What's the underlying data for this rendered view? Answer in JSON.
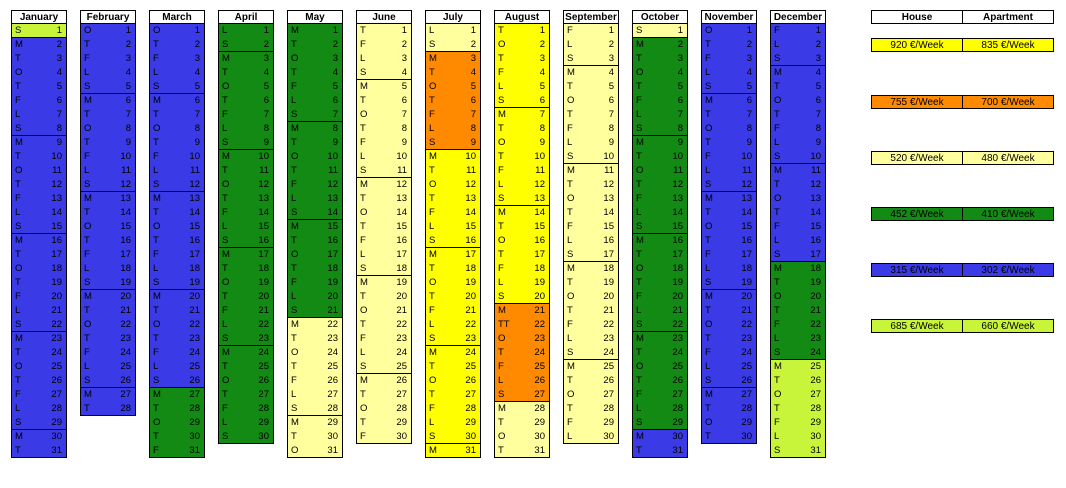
{
  "colors": {
    "blue": "#3a3ae6",
    "green": "#138a13",
    "lightyellow": "#ffff9e",
    "yellow": "#ffff00",
    "orange": "#ff8a00",
    "lime": "#c8f53a"
  },
  "months": [
    {
      "name": "January",
      "days": [
        "S",
        "M",
        "T",
        "O",
        "T",
        "F",
        "L",
        "S",
        "M",
        "T",
        "O",
        "T",
        "F",
        "L",
        "S",
        "M",
        "T",
        "O",
        "T",
        "F",
        "L",
        "S",
        "M",
        "T",
        "O",
        "T",
        "F",
        "L",
        "S",
        "M",
        "T"
      ],
      "colors": [
        "lime",
        "blue",
        "blue",
        "blue",
        "blue",
        "blue",
        "blue",
        "blue",
        "blue",
        "blue",
        "blue",
        "blue",
        "blue",
        "blue",
        "blue",
        "blue",
        "blue",
        "blue",
        "blue",
        "blue",
        "blue",
        "blue",
        "blue",
        "blue",
        "blue",
        "blue",
        "blue",
        "blue",
        "blue",
        "blue",
        "blue"
      ]
    },
    {
      "name": "February",
      "days": [
        "O",
        "T",
        "F",
        "L",
        "S",
        "M",
        "T",
        "O",
        "T",
        "F",
        "L",
        "S",
        "M",
        "T",
        "O",
        "T",
        "F",
        "L",
        "S",
        "M",
        "T",
        "O",
        "T",
        "F",
        "L",
        "S",
        "M",
        "T"
      ],
      "colors": [
        "blue",
        "blue",
        "blue",
        "blue",
        "blue",
        "blue",
        "blue",
        "blue",
        "blue",
        "blue",
        "blue",
        "blue",
        "blue",
        "blue",
        "blue",
        "blue",
        "blue",
        "blue",
        "blue",
        "blue",
        "blue",
        "blue",
        "blue",
        "blue",
        "blue",
        "blue",
        "blue",
        "blue"
      ]
    },
    {
      "name": "March",
      "days": [
        "O",
        "T",
        "F",
        "L",
        "S",
        "M",
        "T",
        "O",
        "T",
        "F",
        "L",
        "S",
        "M",
        "T",
        "O",
        "T",
        "F",
        "L",
        "S",
        "M",
        "T",
        "O",
        "T",
        "F",
        "L",
        "S",
        "M",
        "T",
        "O",
        "T",
        "F"
      ],
      "colors": [
        "blue",
        "blue",
        "blue",
        "blue",
        "blue",
        "blue",
        "blue",
        "blue",
        "blue",
        "blue",
        "blue",
        "blue",
        "blue",
        "blue",
        "blue",
        "blue",
        "blue",
        "blue",
        "blue",
        "blue",
        "blue",
        "blue",
        "blue",
        "blue",
        "blue",
        "blue",
        "green",
        "green",
        "green",
        "green",
        "green"
      ]
    },
    {
      "name": "April",
      "days": [
        "L",
        "S",
        "M",
        "T",
        "O",
        "T",
        "F",
        "L",
        "S",
        "M",
        "T",
        "O",
        "T",
        "F",
        "L",
        "S",
        "M",
        "T",
        "O",
        "T",
        "F",
        "L",
        "S",
        "M",
        "T",
        "O",
        "T",
        "F",
        "L",
        "S"
      ],
      "colors": [
        "green",
        "green",
        "green",
        "green",
        "green",
        "green",
        "green",
        "green",
        "green",
        "green",
        "green",
        "green",
        "green",
        "green",
        "green",
        "green",
        "green",
        "green",
        "green",
        "green",
        "green",
        "green",
        "green",
        "green",
        "green",
        "green",
        "green",
        "green",
        "green",
        "green"
      ]
    },
    {
      "name": "May",
      "days": [
        "M",
        "T",
        "O",
        "T",
        "F",
        "L",
        "S",
        "M",
        "T",
        "O",
        "T",
        "F",
        "L",
        "S",
        "M",
        "T",
        "O",
        "T",
        "F",
        "L",
        "S",
        "M",
        "T",
        "O",
        "T",
        "F",
        "L",
        "S",
        "M",
        "T",
        "O"
      ],
      "colors": [
        "green",
        "green",
        "green",
        "green",
        "green",
        "green",
        "green",
        "green",
        "green",
        "green",
        "green",
        "green",
        "green",
        "green",
        "green",
        "green",
        "green",
        "green",
        "green",
        "green",
        "green",
        "lightyellow",
        "lightyellow",
        "lightyellow",
        "lightyellow",
        "lightyellow",
        "lightyellow",
        "lightyellow",
        "lightyellow",
        "lightyellow",
        "lightyellow"
      ]
    },
    {
      "name": "June",
      "days": [
        "T",
        "F",
        "L",
        "S",
        "M",
        "T",
        "O",
        "T",
        "F",
        "L",
        "S",
        "M",
        "T",
        "O",
        "T",
        "F",
        "L",
        "S",
        "M",
        "T",
        "O",
        "T",
        "F",
        "L",
        "S",
        "M",
        "T",
        "O",
        "T",
        "F"
      ],
      "colors": [
        "lightyellow",
        "lightyellow",
        "lightyellow",
        "lightyellow",
        "lightyellow",
        "lightyellow",
        "lightyellow",
        "lightyellow",
        "lightyellow",
        "lightyellow",
        "lightyellow",
        "lightyellow",
        "lightyellow",
        "lightyellow",
        "lightyellow",
        "lightyellow",
        "lightyellow",
        "lightyellow",
        "lightyellow",
        "lightyellow",
        "lightyellow",
        "lightyellow",
        "lightyellow",
        "lightyellow",
        "lightyellow",
        "lightyellow",
        "lightyellow",
        "lightyellow",
        "lightyellow",
        "lightyellow"
      ]
    },
    {
      "name": "July",
      "days": [
        "L",
        "S",
        "M",
        "T",
        "O",
        "T",
        "F",
        "L",
        "S",
        "M",
        "T",
        "O",
        "T",
        "F",
        "L",
        "S",
        "M",
        "T",
        "O",
        "T",
        "F",
        "L",
        "S",
        "M",
        "T",
        "O",
        "T",
        "F",
        "L",
        "S",
        "M"
      ],
      "colors": [
        "lightyellow",
        "lightyellow",
        "orange",
        "orange",
        "orange",
        "orange",
        "orange",
        "orange",
        "orange",
        "yellow",
        "yellow",
        "yellow",
        "yellow",
        "yellow",
        "yellow",
        "yellow",
        "yellow",
        "yellow",
        "yellow",
        "yellow",
        "yellow",
        "yellow",
        "yellow",
        "yellow",
        "yellow",
        "yellow",
        "yellow",
        "yellow",
        "yellow",
        "yellow",
        "yellow"
      ]
    },
    {
      "name": "August",
      "days": [
        "T",
        "O",
        "T",
        "F",
        "L",
        "S",
        "M",
        "T",
        "O",
        "T",
        "F",
        "L",
        "S",
        "M",
        "T",
        "O",
        "T",
        "F",
        "L",
        "S",
        "M",
        "TT",
        "O",
        "T",
        "F",
        "L",
        "S",
        "M",
        "T",
        "O",
        "T"
      ],
      "colors": [
        "yellow",
        "yellow",
        "yellow",
        "yellow",
        "yellow",
        "yellow",
        "yellow",
        "yellow",
        "yellow",
        "yellow",
        "yellow",
        "yellow",
        "yellow",
        "yellow",
        "yellow",
        "yellow",
        "yellow",
        "yellow",
        "yellow",
        "yellow",
        "orange",
        "orange",
        "orange",
        "orange",
        "orange",
        "orange",
        "orange",
        "lightyellow",
        "lightyellow",
        "lightyellow",
        "lightyellow"
      ]
    },
    {
      "name": "September",
      "days": [
        "F",
        "L",
        "S",
        "M",
        "T",
        "O",
        "T",
        "F",
        "L",
        "S",
        "M",
        "T",
        "O",
        "T",
        "F",
        "L",
        "S",
        "M",
        "T",
        "O",
        "T",
        "F",
        "L",
        "S",
        "M",
        "T",
        "O",
        "T",
        "F",
        "L"
      ],
      "colors": [
        "lightyellow",
        "lightyellow",
        "lightyellow",
        "lightyellow",
        "lightyellow",
        "lightyellow",
        "lightyellow",
        "lightyellow",
        "lightyellow",
        "lightyellow",
        "lightyellow",
        "lightyellow",
        "lightyellow",
        "lightyellow",
        "lightyellow",
        "lightyellow",
        "lightyellow",
        "lightyellow",
        "lightyellow",
        "lightyellow",
        "lightyellow",
        "lightyellow",
        "lightyellow",
        "lightyellow",
        "lightyellow",
        "lightyellow",
        "lightyellow",
        "lightyellow",
        "lightyellow",
        "lightyellow"
      ]
    },
    {
      "name": "October",
      "days": [
        "S",
        "M",
        "T",
        "O",
        "T",
        "F",
        "L",
        "S",
        "M",
        "T",
        "O",
        "T",
        "F",
        "L",
        "S",
        "M",
        "T",
        "O",
        "T",
        "F",
        "L",
        "S",
        "M",
        "T",
        "O",
        "T",
        "F",
        "L",
        "S",
        "M",
        "T"
      ],
      "colors": [
        "lightyellow",
        "green",
        "green",
        "green",
        "green",
        "green",
        "green",
        "green",
        "green",
        "green",
        "green",
        "green",
        "green",
        "green",
        "green",
        "green",
        "green",
        "green",
        "green",
        "green",
        "green",
        "green",
        "green",
        "green",
        "green",
        "green",
        "green",
        "green",
        "green",
        "blue",
        "blue"
      ]
    },
    {
      "name": "November",
      "days": [
        "O",
        "T",
        "F",
        "L",
        "S",
        "M",
        "T",
        "O",
        "T",
        "F",
        "L",
        "S",
        "M",
        "T",
        "O",
        "T",
        "F",
        "L",
        "S",
        "M",
        "T",
        "O",
        "T",
        "F",
        "L",
        "S",
        "M",
        "T",
        "O",
        "T"
      ],
      "colors": [
        "blue",
        "blue",
        "blue",
        "blue",
        "blue",
        "blue",
        "blue",
        "blue",
        "blue",
        "blue",
        "blue",
        "blue",
        "blue",
        "blue",
        "blue",
        "blue",
        "blue",
        "blue",
        "blue",
        "blue",
        "blue",
        "blue",
        "blue",
        "blue",
        "blue",
        "blue",
        "blue",
        "blue",
        "blue",
        "blue"
      ]
    },
    {
      "name": "December",
      "days": [
        "F",
        "L",
        "S",
        "M",
        "T",
        "O",
        "T",
        "F",
        "L",
        "S",
        "M",
        "T",
        "O",
        "T",
        "F",
        "L",
        "S",
        "M",
        "T",
        "O",
        "T",
        "F",
        "L",
        "S",
        "M",
        "T",
        "O",
        "T",
        "F",
        "L",
        "S"
      ],
      "colors": [
        "blue",
        "blue",
        "blue",
        "blue",
        "blue",
        "blue",
        "blue",
        "blue",
        "blue",
        "blue",
        "blue",
        "blue",
        "blue",
        "blue",
        "blue",
        "blue",
        "blue",
        "green",
        "green",
        "green",
        "green",
        "green",
        "green",
        "green",
        "lime",
        "lime",
        "lime",
        "lime",
        "lime",
        "lime",
        "lime"
      ]
    }
  ],
  "legend": {
    "headers": [
      "House",
      "Apartment"
    ],
    "rows": [
      {
        "color": "yellow",
        "house": "920 €/Week",
        "apartment": "835 €/Week"
      },
      {
        "color": "orange",
        "house": "755 €/Week",
        "apartment": "700 €/Week"
      },
      {
        "color": "lightyellow",
        "house": "520 €/Week",
        "apartment": "480 €/Week"
      },
      {
        "color": "green",
        "house": "452 €/Week",
        "apartment": "410 €/Week"
      },
      {
        "color": "blue",
        "house": "315 €/Week",
        "apartment": "302 €/Week"
      },
      {
        "color": "lime",
        "house": "685 €/Week",
        "apartment": "660 €/Week"
      }
    ]
  }
}
